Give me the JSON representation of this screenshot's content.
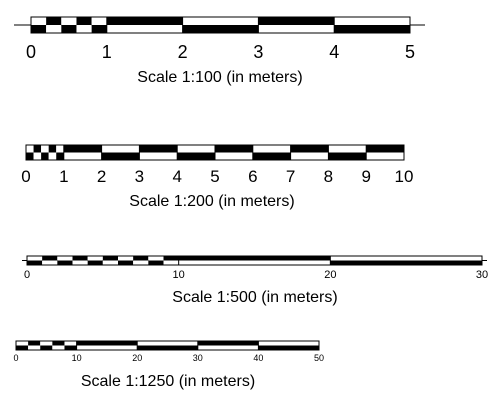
{
  "scale_bars": [
    {
      "id": "scale-1-100",
      "caption": "Scale 1:100 (in meters)",
      "ticks": [
        "0",
        "1",
        "2",
        "3",
        "4",
        "5"
      ],
      "unit_max": 5,
      "fine_first_unit": true,
      "fine_divisions": 5,
      "extension_lines": true
    },
    {
      "id": "scale-1-200",
      "caption": "Scale 1:200 (in meters)",
      "ticks": [
        "0",
        "1",
        "2",
        "3",
        "4",
        "5",
        "6",
        "7",
        "8",
        "9",
        "10"
      ],
      "unit_max": 10,
      "fine_first_unit": true,
      "fine_divisions": 5,
      "extension_lines": false
    },
    {
      "id": "scale-1-500",
      "caption": "Scale 1:500 (in meters)",
      "ticks": [
        "0",
        "10",
        "20",
        "30"
      ],
      "unit_max": 30,
      "fine_first_unit": true,
      "fine_divisions": 10,
      "extension_lines": true
    },
    {
      "id": "scale-1-1250",
      "caption": "Scale 1:1250 (in meters)",
      "ticks": [
        "0",
        "10",
        "20",
        "30",
        "40",
        "50"
      ],
      "unit_max": 50,
      "fine_first_unit": true,
      "fine_divisions": 5,
      "extension_lines": false
    }
  ],
  "colors": {
    "ink": "#000000",
    "paper": "#ffffff"
  }
}
